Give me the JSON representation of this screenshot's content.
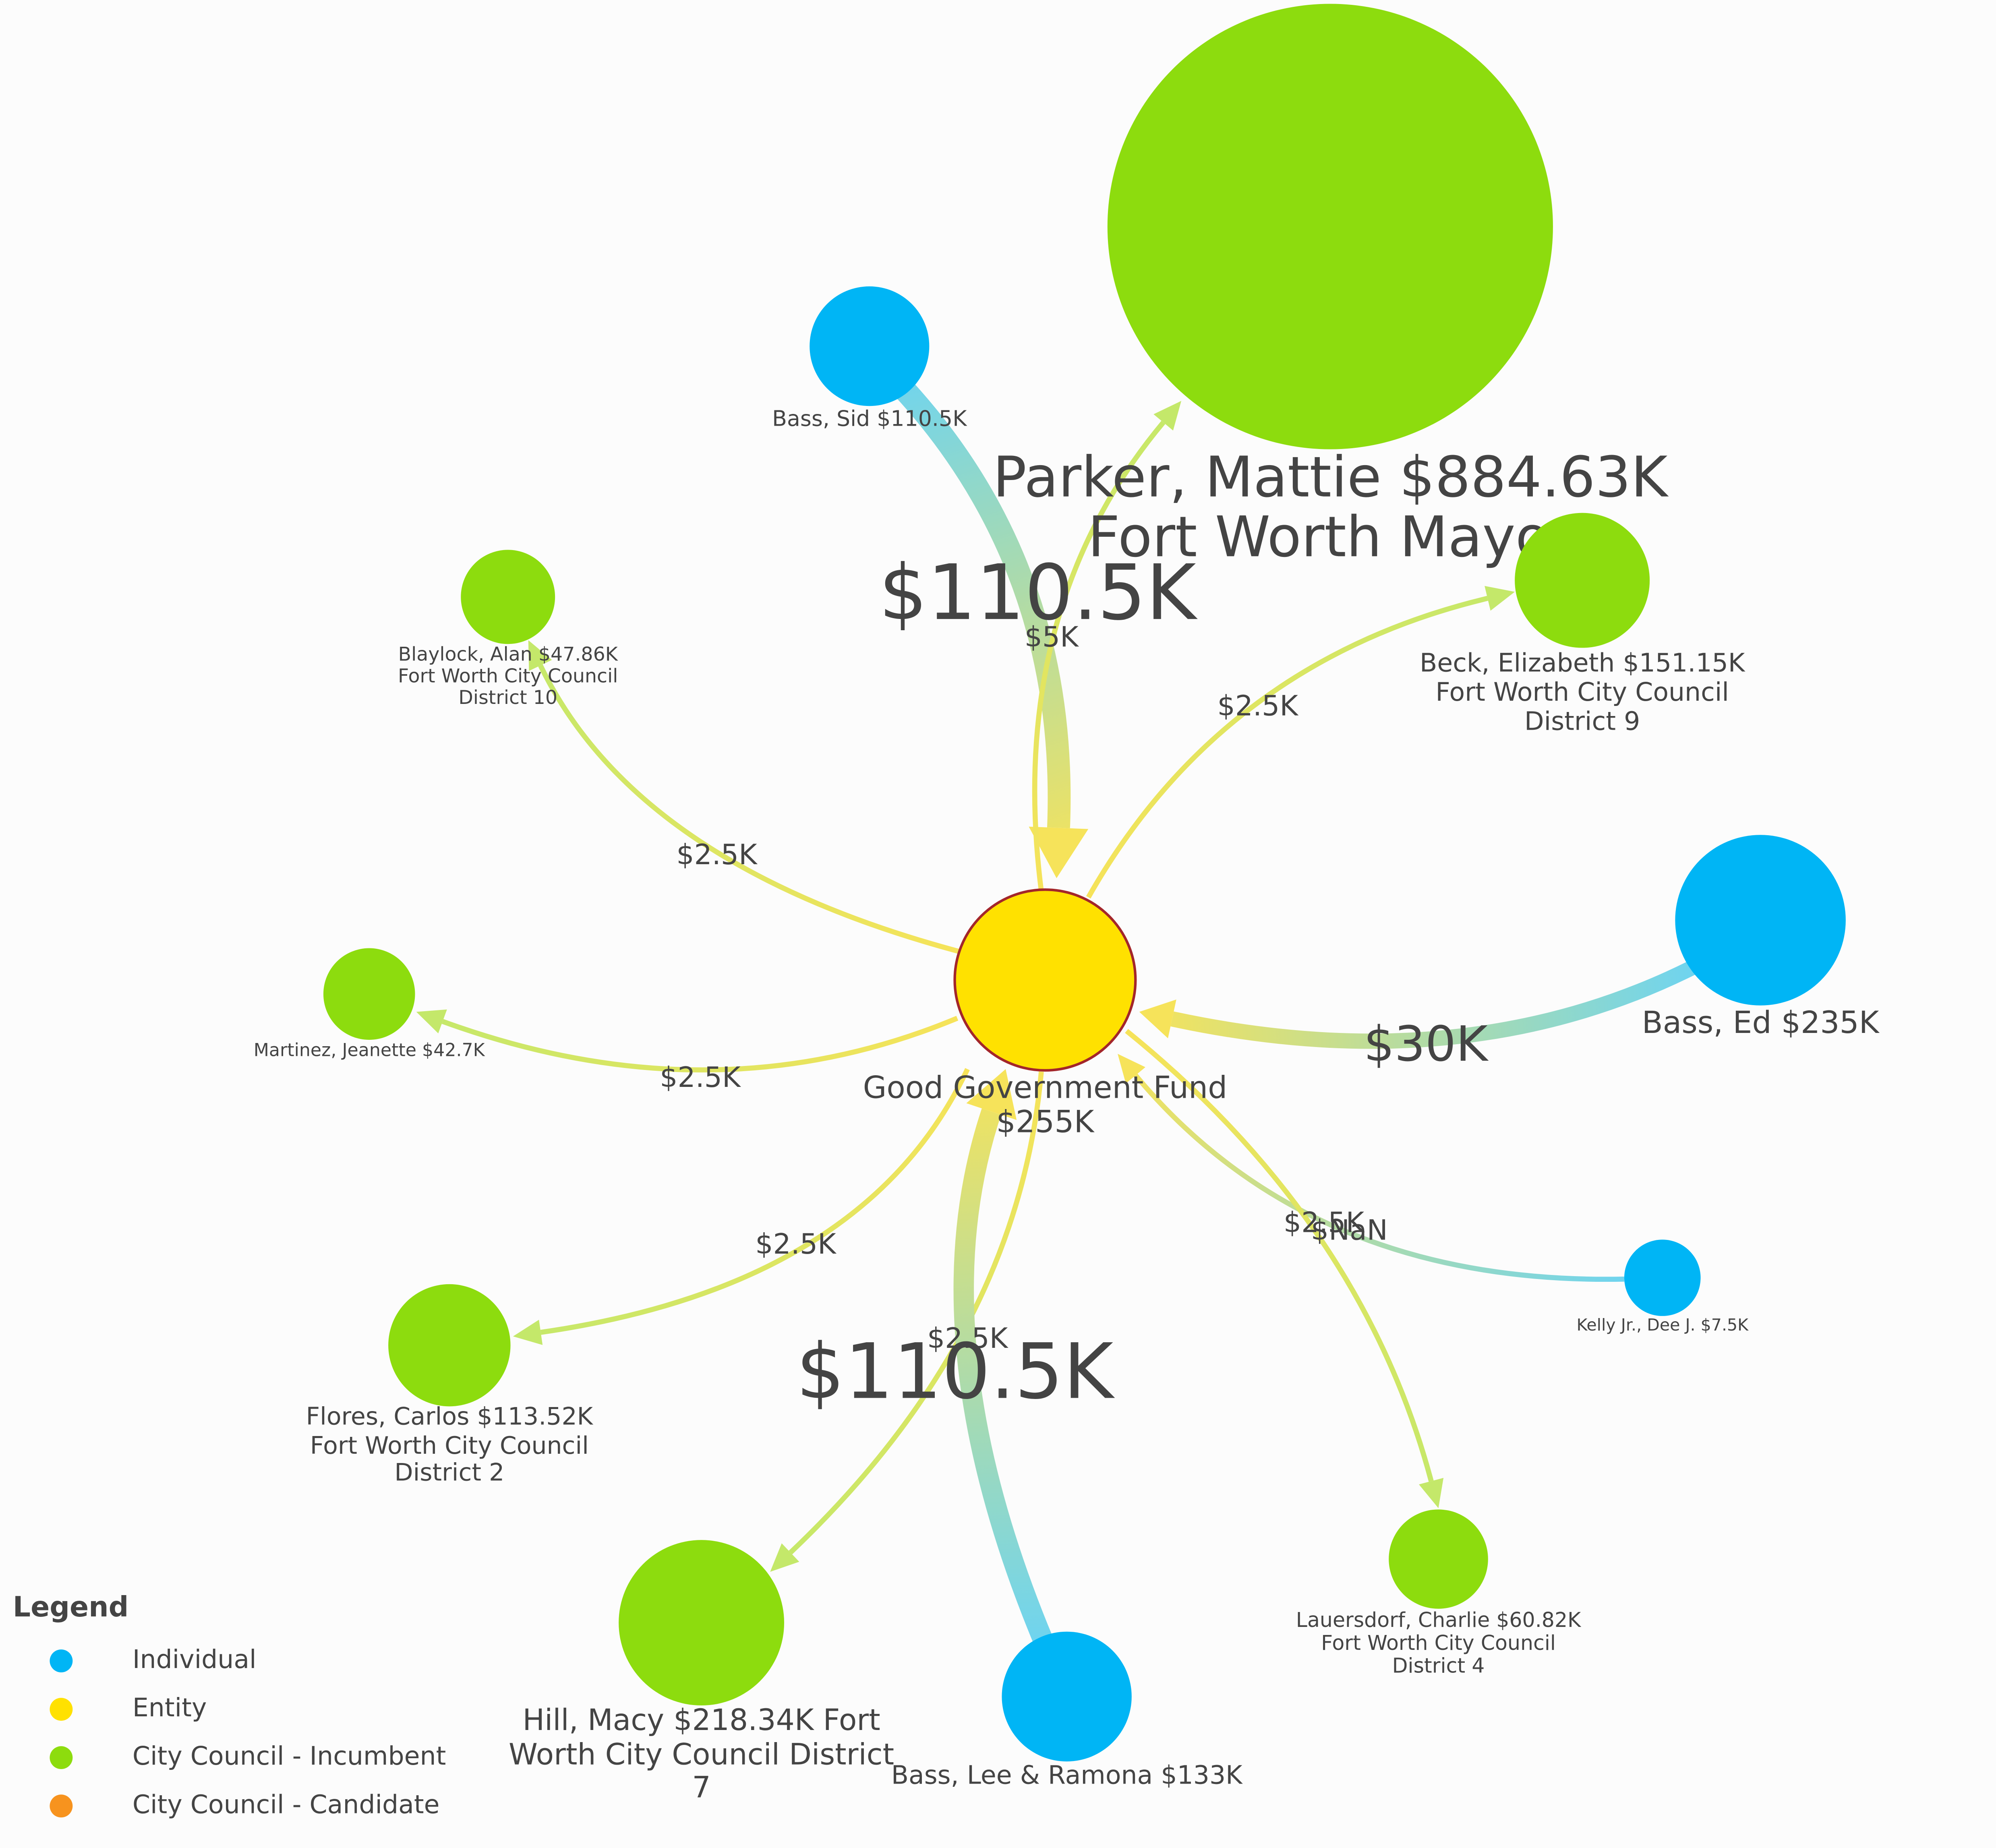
{
  "nodes": [
    {
      "label": [
        "Parker, Mattie $884.63K",
        "Fort Worth Mayor"
      ]
    },
    {
      "label": [
        "Bass, Sid $110.5K"
      ]
    },
    {
      "label": [
        "Blaylock, Alan $47.86K",
        "Fort Worth City Council",
        "District 10"
      ]
    },
    {
      "label": [
        "Beck, Elizabeth $151.15K",
        "Fort Worth City Council",
        "District 9"
      ]
    },
    {
      "label": [
        "Martinez, Jeanette $42.7K"
      ]
    },
    {
      "label": [
        "Good Government Fund",
        "$255K"
      ]
    },
    {
      "label": [
        "Bass, Ed $235K"
      ]
    },
    {
      "label": [
        "Kelly Jr., Dee J. $7.5K"
      ]
    },
    {
      "label": [
        "Flores, Carlos $113.52K",
        "Fort Worth City Council",
        "District 2"
      ]
    },
    {
      "label": [
        "Lauersdorf, Charlie $60.82K",
        "Fort Worth City Council",
        "District 4"
      ]
    },
    {
      "label": [
        "Hill, Macy $218.34K Fort",
        "Worth City Council District",
        "7"
      ]
    },
    {
      "label": [
        "Bass, Lee & Ramona $133K"
      ]
    }
  ],
  "edges": [
    {
      "label": "$110.5K"
    },
    {
      "label": "$5K"
    },
    {
      "label": "$2.5K"
    },
    {
      "label": "$2.5K"
    },
    {
      "label": "$2.5K"
    },
    {
      "label": "$30K"
    },
    {
      "label": "$NaN"
    },
    {
      "label": "$2.5K"
    },
    {
      "label": "$2.5K"
    },
    {
      "label": "$2.5K"
    },
    {
      "label": "$110.5K"
    }
  ],
  "legend": {
    "title": "Legend",
    "items": [
      {
        "label": "Individual",
        "color": "#00b5f5"
      },
      {
        "label": "Entity",
        "color": "#ffe100"
      },
      {
        "label": "City Council - Incumbent",
        "color": "#8ddc0e"
      },
      {
        "label": "City Council - Candidate",
        "color": "#f7931e"
      }
    ]
  }
}
